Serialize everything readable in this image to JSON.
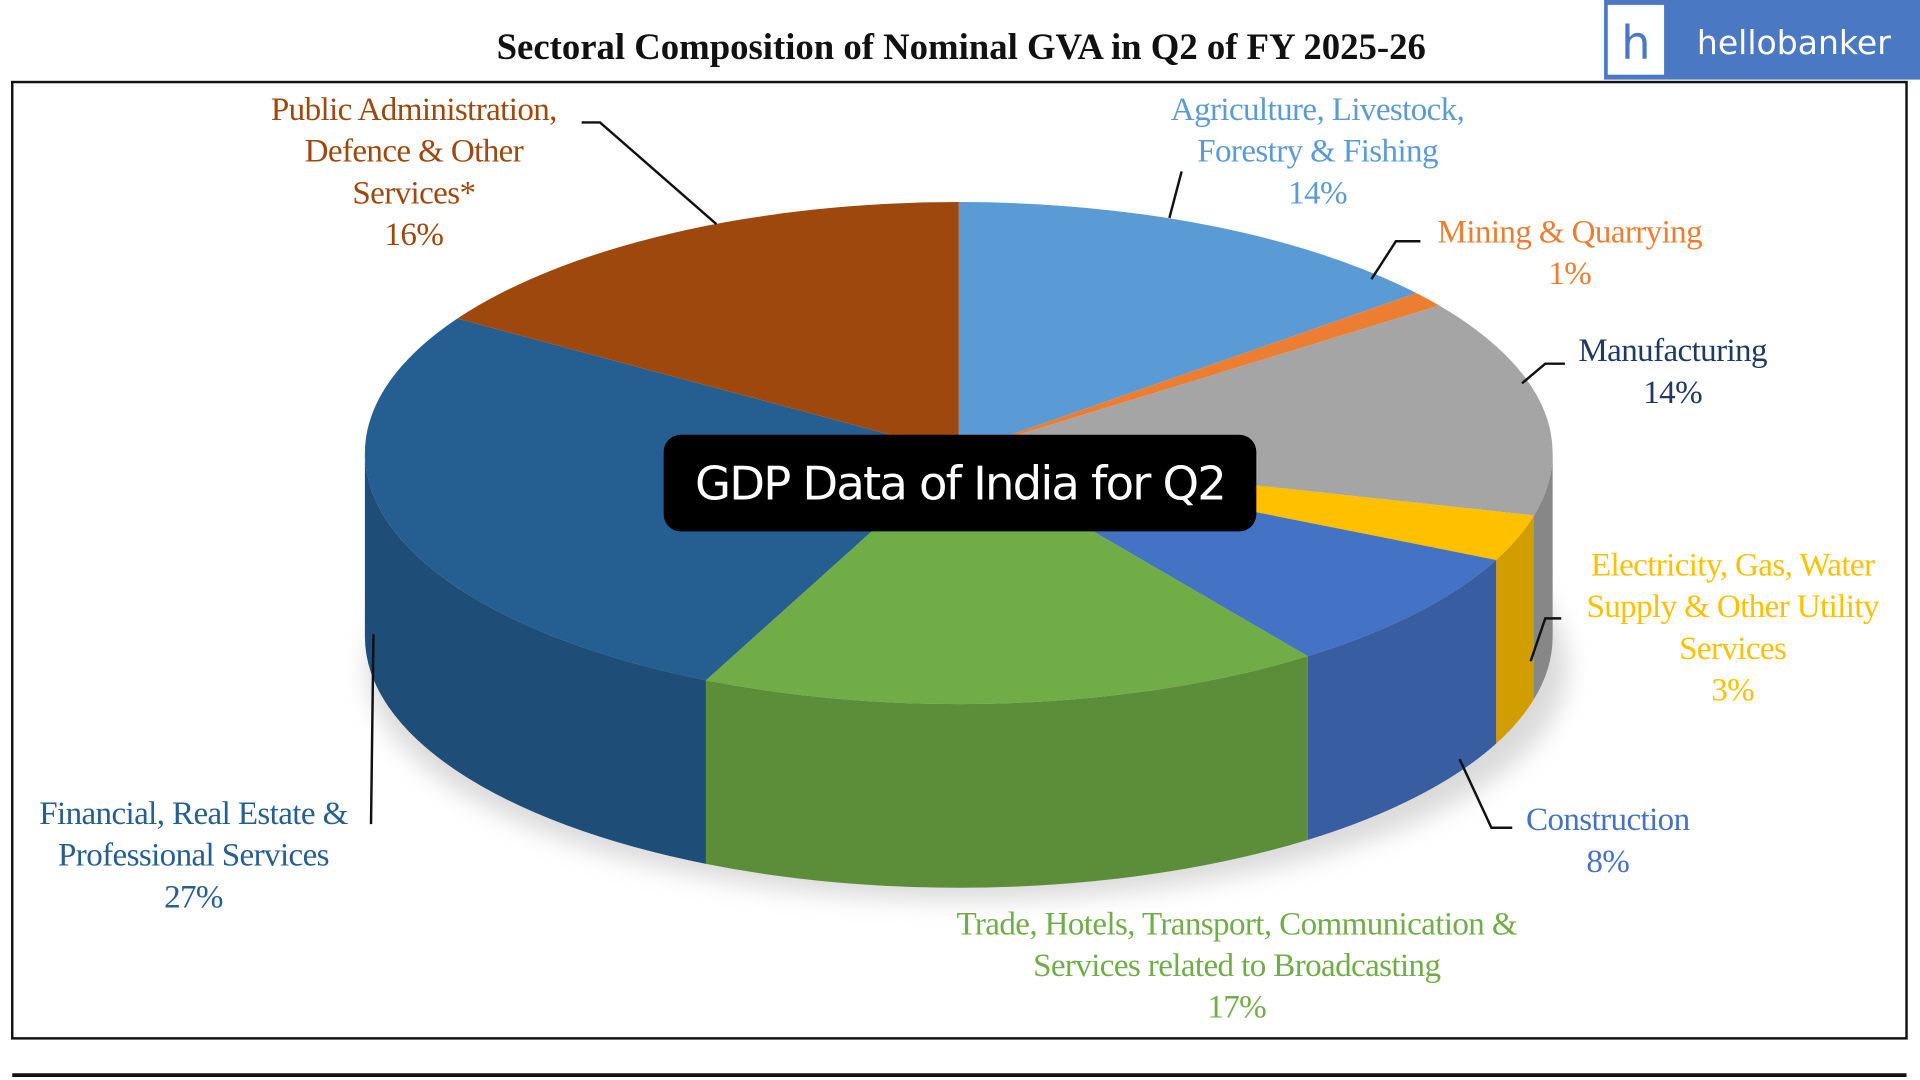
{
  "chart_data": {
    "type": "pie",
    "title": "Sectoral Composition of Nominal GVA in Q2 of FY 2025-26",
    "categories": [
      "Agriculture, Livestock,\nForestry & Fishing",
      "Mining & Quarrying",
      "Manufacturing",
      "Electricity, Gas, Water\nSupply & Other Utility\nServices",
      "Construction",
      "Trade, Hotels, Transport, Communication &\nServices related to Broadcasting",
      "Financial, Real Estate &\nProfessional Services",
      "Public Administration,\nDefence & Other\nServices*"
    ],
    "values": [
      14,
      1,
      14,
      3,
      8,
      17,
      27,
      16
    ],
    "value_labels": [
      "14%",
      "1%",
      "14%",
      "3%",
      "8%",
      "17%",
      "27%",
      "16%"
    ],
    "colors": [
      "#5b9bd5",
      "#ed7d31",
      "#a5a5a5",
      "#ffc000",
      "#4472c4",
      "#70ad47",
      "#255e91",
      "#9e480e"
    ],
    "label_colors": [
      "#5b9bd5",
      "#ed7d31",
      "#1f3864",
      "#ffc000",
      "#4472c4",
      "#70ad47",
      "#255e91",
      "#9e480e"
    ]
  },
  "caption": "GDP Data of India for Q2",
  "brand": {
    "letter": "h",
    "name": "hellobanker"
  }
}
